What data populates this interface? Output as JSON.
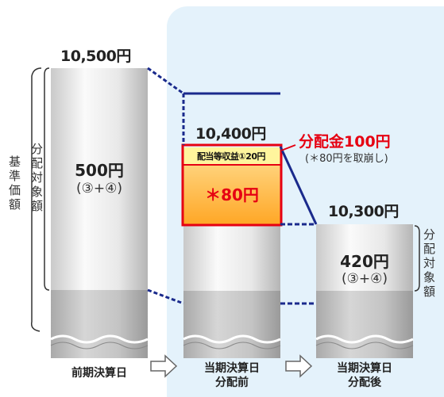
{
  "bars": {
    "previous": {
      "top_value": "10,500円",
      "amount": "500円",
      "formula": "(③+④)"
    },
    "before": {
      "top_value": "10,400円",
      "retained_label": "配当等収益①20円",
      "star_value": "＊80円"
    },
    "after": {
      "top_value": "10,300円",
      "amount": "420円",
      "formula": "(③+④)"
    }
  },
  "callout": {
    "title": "分配金100円",
    "note": "(＊80円を取崩し)"
  },
  "brackets": {
    "nav": "基準価額",
    "distributable_left": "分配対象額",
    "distributable_right": "分配対象額"
  },
  "bottom_labels": {
    "previous": "前期決算日",
    "before_line1": "当期決算日",
    "before_line2": "分配前",
    "after_line1": "当期決算日",
    "after_line2": "分配後"
  },
  "colors": {
    "panel_bg": "#e4f2fb",
    "dotted_line": "#1a2a8c",
    "highlight_border": "#e60012",
    "highlight_fill": "#ffb347",
    "retained_fill": "#fff59d"
  }
}
